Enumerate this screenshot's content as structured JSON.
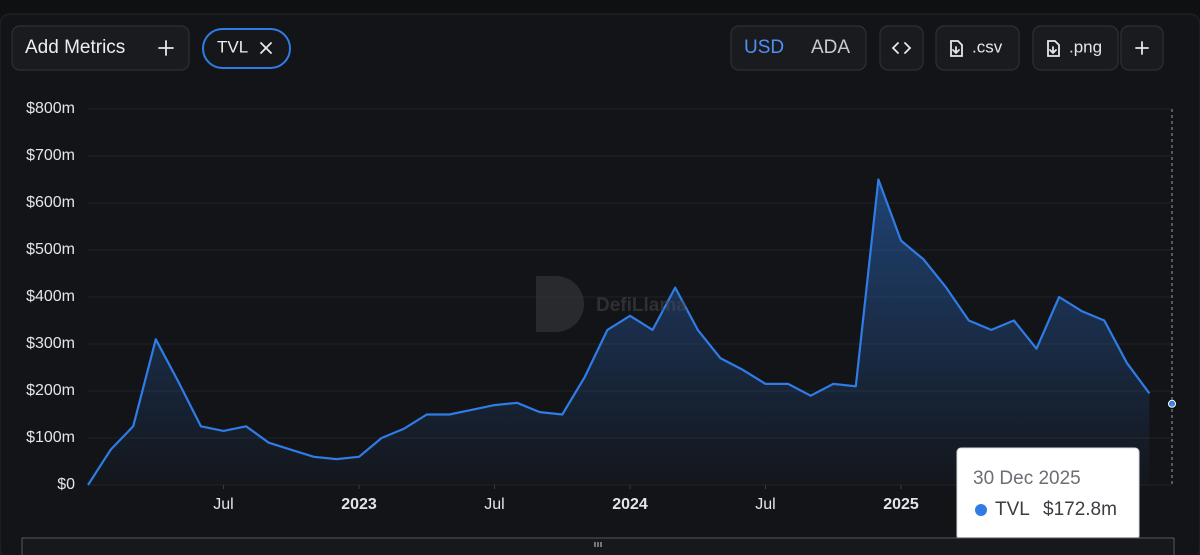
{
  "toolbar": {
    "add_metrics": "Add Metrics",
    "metric_chip": "TVL",
    "currencies": [
      "USD",
      "ADA"
    ],
    "csv": ".csv",
    "png": ".png"
  },
  "watermark": "DefiLlama",
  "chart_data": {
    "type": "line",
    "x": [
      "2022-01",
      "2022-02",
      "2022-03",
      "2022-04",
      "2022-05",
      "2022-06",
      "2022-07",
      "2022-08",
      "2022-09",
      "2022-10",
      "2022-11",
      "2022-12",
      "2023-01",
      "2023-02",
      "2023-03",
      "2023-04",
      "2023-05",
      "2023-06",
      "2023-07",
      "2023-08",
      "2023-09",
      "2023-10",
      "2023-11",
      "2023-12",
      "2024-01",
      "2024-02",
      "2024-03",
      "2024-04",
      "2024-05",
      "2024-06",
      "2024-07",
      "2024-08",
      "2024-09",
      "2024-10",
      "2024-11",
      "2024-12",
      "2025-01",
      "2025-02",
      "2025-03",
      "2025-04",
      "2025-05",
      "2025-06",
      "2025-07",
      "2025-08",
      "2025-09",
      "2025-10",
      "2025-11",
      "2025-12"
    ],
    "series": [
      {
        "name": "TVL",
        "color": "#2f7ce6",
        "values": [
          0,
          75,
          125,
          310,
          220,
          125,
          115,
          125,
          90,
          75,
          60,
          55,
          60,
          100,
          120,
          150,
          150,
          160,
          170,
          175,
          155,
          150,
          230,
          330,
          360,
          330,
          420,
          330,
          270,
          245,
          215,
          215,
          190,
          215,
          210,
          650,
          520,
          480,
          420,
          350,
          330,
          350,
          290,
          400,
          370,
          350,
          260,
          195
        ]
      }
    ],
    "xlim": [
      "2022-01",
      "2026-01"
    ],
    "xticks": [
      {
        "value": "2022-07",
        "label": "Jul"
      },
      {
        "value": "2023-01",
        "label": "2023"
      },
      {
        "value": "2023-07",
        "label": "Jul"
      },
      {
        "value": "2024-01",
        "label": "2024"
      },
      {
        "value": "2024-07",
        "label": "Jul"
      },
      {
        "value": "2025-01",
        "label": "2025"
      }
    ],
    "ylim": [
      0,
      800
    ],
    "yticks": [
      {
        "value": 0,
        "label": "$0"
      },
      {
        "value": 100,
        "label": "$100m"
      },
      {
        "value": 200,
        "label": "$200m"
      },
      {
        "value": 300,
        "label": "$300m"
      },
      {
        "value": 400,
        "label": "$400m"
      },
      {
        "value": 500,
        "label": "$500m"
      },
      {
        "value": 600,
        "label": "$600m"
      },
      {
        "value": 700,
        "label": "$700m"
      },
      {
        "value": 800,
        "label": "$800m"
      }
    ],
    "grid": true
  },
  "tooltip": {
    "date": "30 Dec 2025",
    "value": 172.8,
    "value_label": "$172.8m"
  }
}
